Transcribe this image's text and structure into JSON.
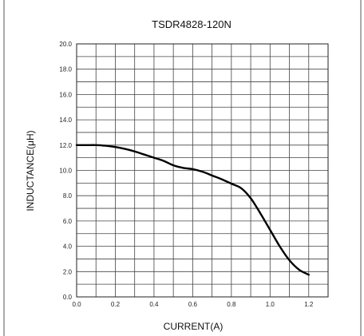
{
  "chart_data": {
    "type": "line",
    "title": "TSDR4828-120N",
    "xlabel": "CURRENT(A)",
    "ylabel": "INDUCTANCE(μH)",
    "xlim": [
      0.0,
      1.3
    ],
    "ylim": [
      0.0,
      20.0
    ],
    "x_minor_step": 0.1,
    "y_minor_step": 1.0,
    "x_ticks": [
      "0.0",
      "0.2",
      "0.4",
      "0.6",
      "0.8",
      "1.0",
      "1.2"
    ],
    "x_tick_values": [
      0.0,
      0.2,
      0.4,
      0.6,
      0.8,
      1.0,
      1.2
    ],
    "y_ticks": [
      "0.0",
      "2.0",
      "4.0",
      "6.0",
      "8.0",
      "10.0",
      "12.0",
      "14.0",
      "16.0",
      "18.0",
      "20.0"
    ],
    "y_tick_values": [
      0,
      2,
      4,
      6,
      8,
      10,
      12,
      14,
      16,
      18,
      20
    ],
    "grid": true,
    "series": [
      {
        "x": [
          0.0,
          0.05,
          0.1,
          0.15,
          0.2,
          0.25,
          0.3,
          0.35,
          0.4,
          0.45,
          0.5,
          0.55,
          0.6,
          0.65,
          0.7,
          0.75,
          0.8,
          0.85,
          0.9,
          0.95,
          1.0,
          1.05,
          1.1,
          1.15,
          1.2
        ],
        "y": [
          12.0,
          12.0,
          12.0,
          11.95,
          11.85,
          11.7,
          11.5,
          11.25,
          11.0,
          10.75,
          10.4,
          10.2,
          10.1,
          9.9,
          9.6,
          9.3,
          8.95,
          8.6,
          7.8,
          6.6,
          5.3,
          4.0,
          2.9,
          2.15,
          1.75
        ],
        "color": "#000000"
      }
    ]
  }
}
